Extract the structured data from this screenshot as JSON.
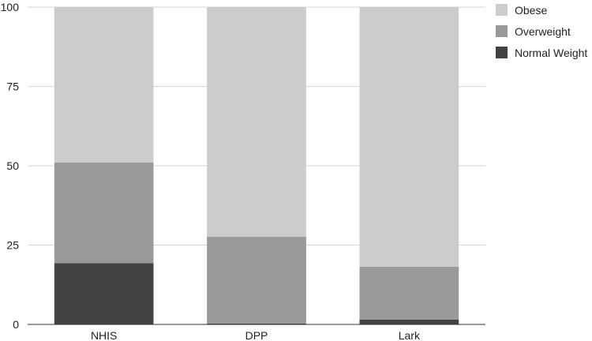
{
  "chart_data": {
    "type": "bar",
    "stacked": true,
    "categories": [
      "NHIS",
      "DPP",
      "Lark"
    ],
    "series": [
      {
        "name": "Normal Weight",
        "color": "#424242",
        "values": [
          19.3,
          0.3,
          1.5
        ]
      },
      {
        "name": "Overweight",
        "color": "#999999",
        "values": [
          31.7,
          27.3,
          16.7
        ]
      },
      {
        "name": "Obese",
        "color": "#cccccc",
        "values": [
          49.0,
          72.4,
          81.8
        ]
      }
    ],
    "legend_order": [
      "Obese",
      "Overweight",
      "Normal Weight"
    ],
    "yticks": [
      "0",
      "25",
      "50",
      "75",
      "100"
    ],
    "ylim": [
      0,
      100
    ],
    "grid": true,
    "legend_position": "top-right",
    "title": "",
    "xlabel": "",
    "ylabel": ""
  }
}
